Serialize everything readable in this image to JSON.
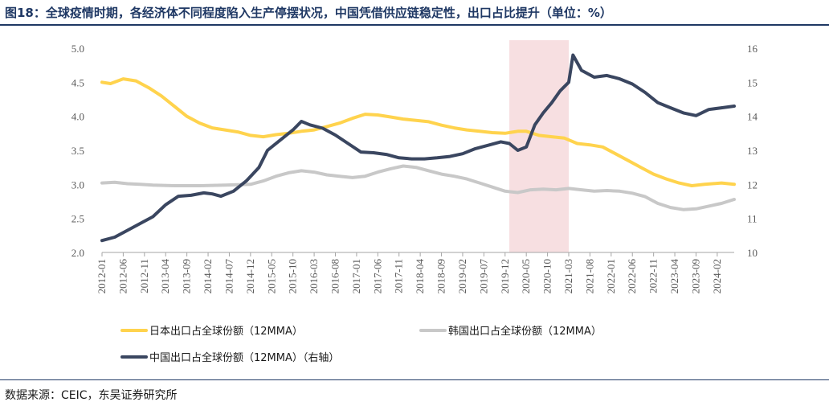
{
  "title": "图18：全球疫情时期，各经济体不同程度陷入生产停摆状况，中国凭借供应链稳定性，出口占比提升（单位：%）",
  "source": "数据来源：CEIC，东吴证券研究所",
  "colors": {
    "japan": "#ffd34d",
    "korea": "#c8c8c8",
    "china": "#3a4660",
    "shade": "#f7dfe1"
  },
  "chart_data": {
    "type": "line",
    "x_start": "2012-01",
    "x_end": "2024-06",
    "x_ticks": [
      "2012-01",
      "2012-06",
      "2012-11",
      "2013-04",
      "2013-09",
      "2014-02",
      "2014-07",
      "2014-12",
      "2015-05",
      "2015-10",
      "2016-03",
      "2016-08",
      "2017-01",
      "2017-06",
      "2017-11",
      "2018-04",
      "2018-09",
      "2019-02",
      "2019-07",
      "2019-12",
      "2020-05",
      "2020-10",
      "2021-03",
      "2021-08",
      "2022-01",
      "2022-06",
      "2022-11",
      "2023-04",
      "2023-09",
      "2024-02"
    ],
    "y_left": {
      "min": 2.0,
      "max": 5.0,
      "ticks": [
        "2.0",
        "2.5",
        "3.0",
        "3.5",
        "4.0",
        "4.5",
        "5.0"
      ]
    },
    "y_right": {
      "min": 10,
      "max": 16,
      "ticks": [
        "10",
        "11",
        "12",
        "13",
        "14",
        "15",
        "16"
      ]
    },
    "shaded_period": [
      "2020-01",
      "2021-03"
    ],
    "series": [
      {
        "name": "日本出口占全球份额（12MMA）",
        "axis": "left",
        "points": [
          [
            "2012-01",
            4.5
          ],
          [
            "2012-03",
            4.48
          ],
          [
            "2012-06",
            4.55
          ],
          [
            "2012-09",
            4.52
          ],
          [
            "2012-12",
            4.42
          ],
          [
            "2013-03",
            4.3
          ],
          [
            "2013-06",
            4.15
          ],
          [
            "2013-09",
            4.0
          ],
          [
            "2013-12",
            3.9
          ],
          [
            "2014-03",
            3.83
          ],
          [
            "2014-06",
            3.8
          ],
          [
            "2014-09",
            3.77
          ],
          [
            "2014-12",
            3.72
          ],
          [
            "2015-03",
            3.7
          ],
          [
            "2015-06",
            3.73
          ],
          [
            "2015-09",
            3.75
          ],
          [
            "2015-12",
            3.78
          ],
          [
            "2016-03",
            3.8
          ],
          [
            "2016-06",
            3.85
          ],
          [
            "2016-09",
            3.9
          ],
          [
            "2016-12",
            3.97
          ],
          [
            "2017-03",
            4.03
          ],
          [
            "2017-06",
            4.02
          ],
          [
            "2017-09",
            3.99
          ],
          [
            "2017-12",
            3.96
          ],
          [
            "2018-03",
            3.94
          ],
          [
            "2018-06",
            3.92
          ],
          [
            "2018-09",
            3.87
          ],
          [
            "2018-12",
            3.83
          ],
          [
            "2019-03",
            3.8
          ],
          [
            "2019-06",
            3.78
          ],
          [
            "2019-09",
            3.76
          ],
          [
            "2019-12",
            3.75
          ],
          [
            "2020-03",
            3.78
          ],
          [
            "2020-05",
            3.78
          ],
          [
            "2020-08",
            3.72
          ],
          [
            "2020-11",
            3.7
          ],
          [
            "2021-02",
            3.68
          ],
          [
            "2021-05",
            3.6
          ],
          [
            "2021-08",
            3.58
          ],
          [
            "2021-11",
            3.55
          ],
          [
            "2022-02",
            3.45
          ],
          [
            "2022-05",
            3.35
          ],
          [
            "2022-08",
            3.25
          ],
          [
            "2022-11",
            3.15
          ],
          [
            "2023-02",
            3.08
          ],
          [
            "2023-05",
            3.02
          ],
          [
            "2023-08",
            2.98
          ],
          [
            "2023-11",
            3.0
          ],
          [
            "2024-03",
            3.02
          ],
          [
            "2024-06",
            3.0
          ]
        ]
      },
      {
        "name": "韩国出口占全球份额（12MMA）",
        "axis": "left",
        "points": [
          [
            "2012-01",
            3.02
          ],
          [
            "2012-04",
            3.03
          ],
          [
            "2012-07",
            3.01
          ],
          [
            "2012-10",
            3.0
          ],
          [
            "2013-01",
            2.99
          ],
          [
            "2013-06",
            2.98
          ],
          [
            "2013-12",
            2.98
          ],
          [
            "2014-06",
            2.99
          ],
          [
            "2014-12",
            3.0
          ],
          [
            "2015-03",
            3.05
          ],
          [
            "2015-06",
            3.12
          ],
          [
            "2015-09",
            3.17
          ],
          [
            "2015-12",
            3.2
          ],
          [
            "2016-03",
            3.18
          ],
          [
            "2016-06",
            3.14
          ],
          [
            "2016-09",
            3.12
          ],
          [
            "2016-12",
            3.1
          ],
          [
            "2017-03",
            3.12
          ],
          [
            "2017-06",
            3.18
          ],
          [
            "2017-09",
            3.23
          ],
          [
            "2017-12",
            3.27
          ],
          [
            "2018-03",
            3.25
          ],
          [
            "2018-06",
            3.2
          ],
          [
            "2018-09",
            3.15
          ],
          [
            "2018-12",
            3.12
          ],
          [
            "2019-03",
            3.08
          ],
          [
            "2019-06",
            3.02
          ],
          [
            "2019-09",
            2.96
          ],
          [
            "2019-12",
            2.9
          ],
          [
            "2020-03",
            2.88
          ],
          [
            "2020-06",
            2.92
          ],
          [
            "2020-09",
            2.93
          ],
          [
            "2020-12",
            2.92
          ],
          [
            "2021-03",
            2.94
          ],
          [
            "2021-06",
            2.92
          ],
          [
            "2021-09",
            2.9
          ],
          [
            "2021-12",
            2.91
          ],
          [
            "2022-03",
            2.9
          ],
          [
            "2022-06",
            2.87
          ],
          [
            "2022-09",
            2.82
          ],
          [
            "2022-12",
            2.72
          ],
          [
            "2023-03",
            2.66
          ],
          [
            "2023-06",
            2.63
          ],
          [
            "2023-09",
            2.64
          ],
          [
            "2023-12",
            2.68
          ],
          [
            "2024-03",
            2.72
          ],
          [
            "2024-06",
            2.78
          ]
        ]
      },
      {
        "name": "中国出口占全球份额（12MMA）（右轴）",
        "axis": "right",
        "points": [
          [
            "2012-01",
            10.35
          ],
          [
            "2012-04",
            10.45
          ],
          [
            "2012-07",
            10.65
          ],
          [
            "2012-10",
            10.85
          ],
          [
            "2013-01",
            11.05
          ],
          [
            "2013-04",
            11.4
          ],
          [
            "2013-07",
            11.65
          ],
          [
            "2013-10",
            11.68
          ],
          [
            "2014-01",
            11.75
          ],
          [
            "2014-03",
            11.72
          ],
          [
            "2014-05",
            11.65
          ],
          [
            "2014-08",
            11.8
          ],
          [
            "2014-11",
            12.1
          ],
          [
            "2015-02",
            12.5
          ],
          [
            "2015-04",
            13.0
          ],
          [
            "2015-07",
            13.3
          ],
          [
            "2015-10",
            13.6
          ],
          [
            "2015-12",
            13.85
          ],
          [
            "2016-02",
            13.75
          ],
          [
            "2016-05",
            13.65
          ],
          [
            "2016-08",
            13.45
          ],
          [
            "2016-11",
            13.2
          ],
          [
            "2017-02",
            12.95
          ],
          [
            "2017-05",
            12.93
          ],
          [
            "2017-08",
            12.88
          ],
          [
            "2017-11",
            12.78
          ],
          [
            "2018-02",
            12.75
          ],
          [
            "2018-05",
            12.75
          ],
          [
            "2018-08",
            12.78
          ],
          [
            "2018-11",
            12.82
          ],
          [
            "2019-02",
            12.9
          ],
          [
            "2019-05",
            13.05
          ],
          [
            "2019-08",
            13.15
          ],
          [
            "2019-11",
            13.25
          ],
          [
            "2020-01",
            13.2
          ],
          [
            "2020-03",
            13.0
          ],
          [
            "2020-05",
            13.1
          ],
          [
            "2020-07",
            13.75
          ],
          [
            "2020-09",
            14.1
          ],
          [
            "2020-11",
            14.4
          ],
          [
            "2021-01",
            14.75
          ],
          [
            "2021-03",
            15.0
          ],
          [
            "2021-04",
            15.8
          ],
          [
            "2021-06",
            15.35
          ],
          [
            "2021-09",
            15.15
          ],
          [
            "2021-12",
            15.2
          ],
          [
            "2022-03",
            15.1
          ],
          [
            "2022-06",
            14.95
          ],
          [
            "2022-09",
            14.7
          ],
          [
            "2022-12",
            14.4
          ],
          [
            "2023-03",
            14.25
          ],
          [
            "2023-06",
            14.1
          ],
          [
            "2023-09",
            14.02
          ],
          [
            "2023-12",
            14.2
          ],
          [
            "2024-03",
            14.25
          ],
          [
            "2024-06",
            14.3
          ]
        ]
      }
    ]
  }
}
